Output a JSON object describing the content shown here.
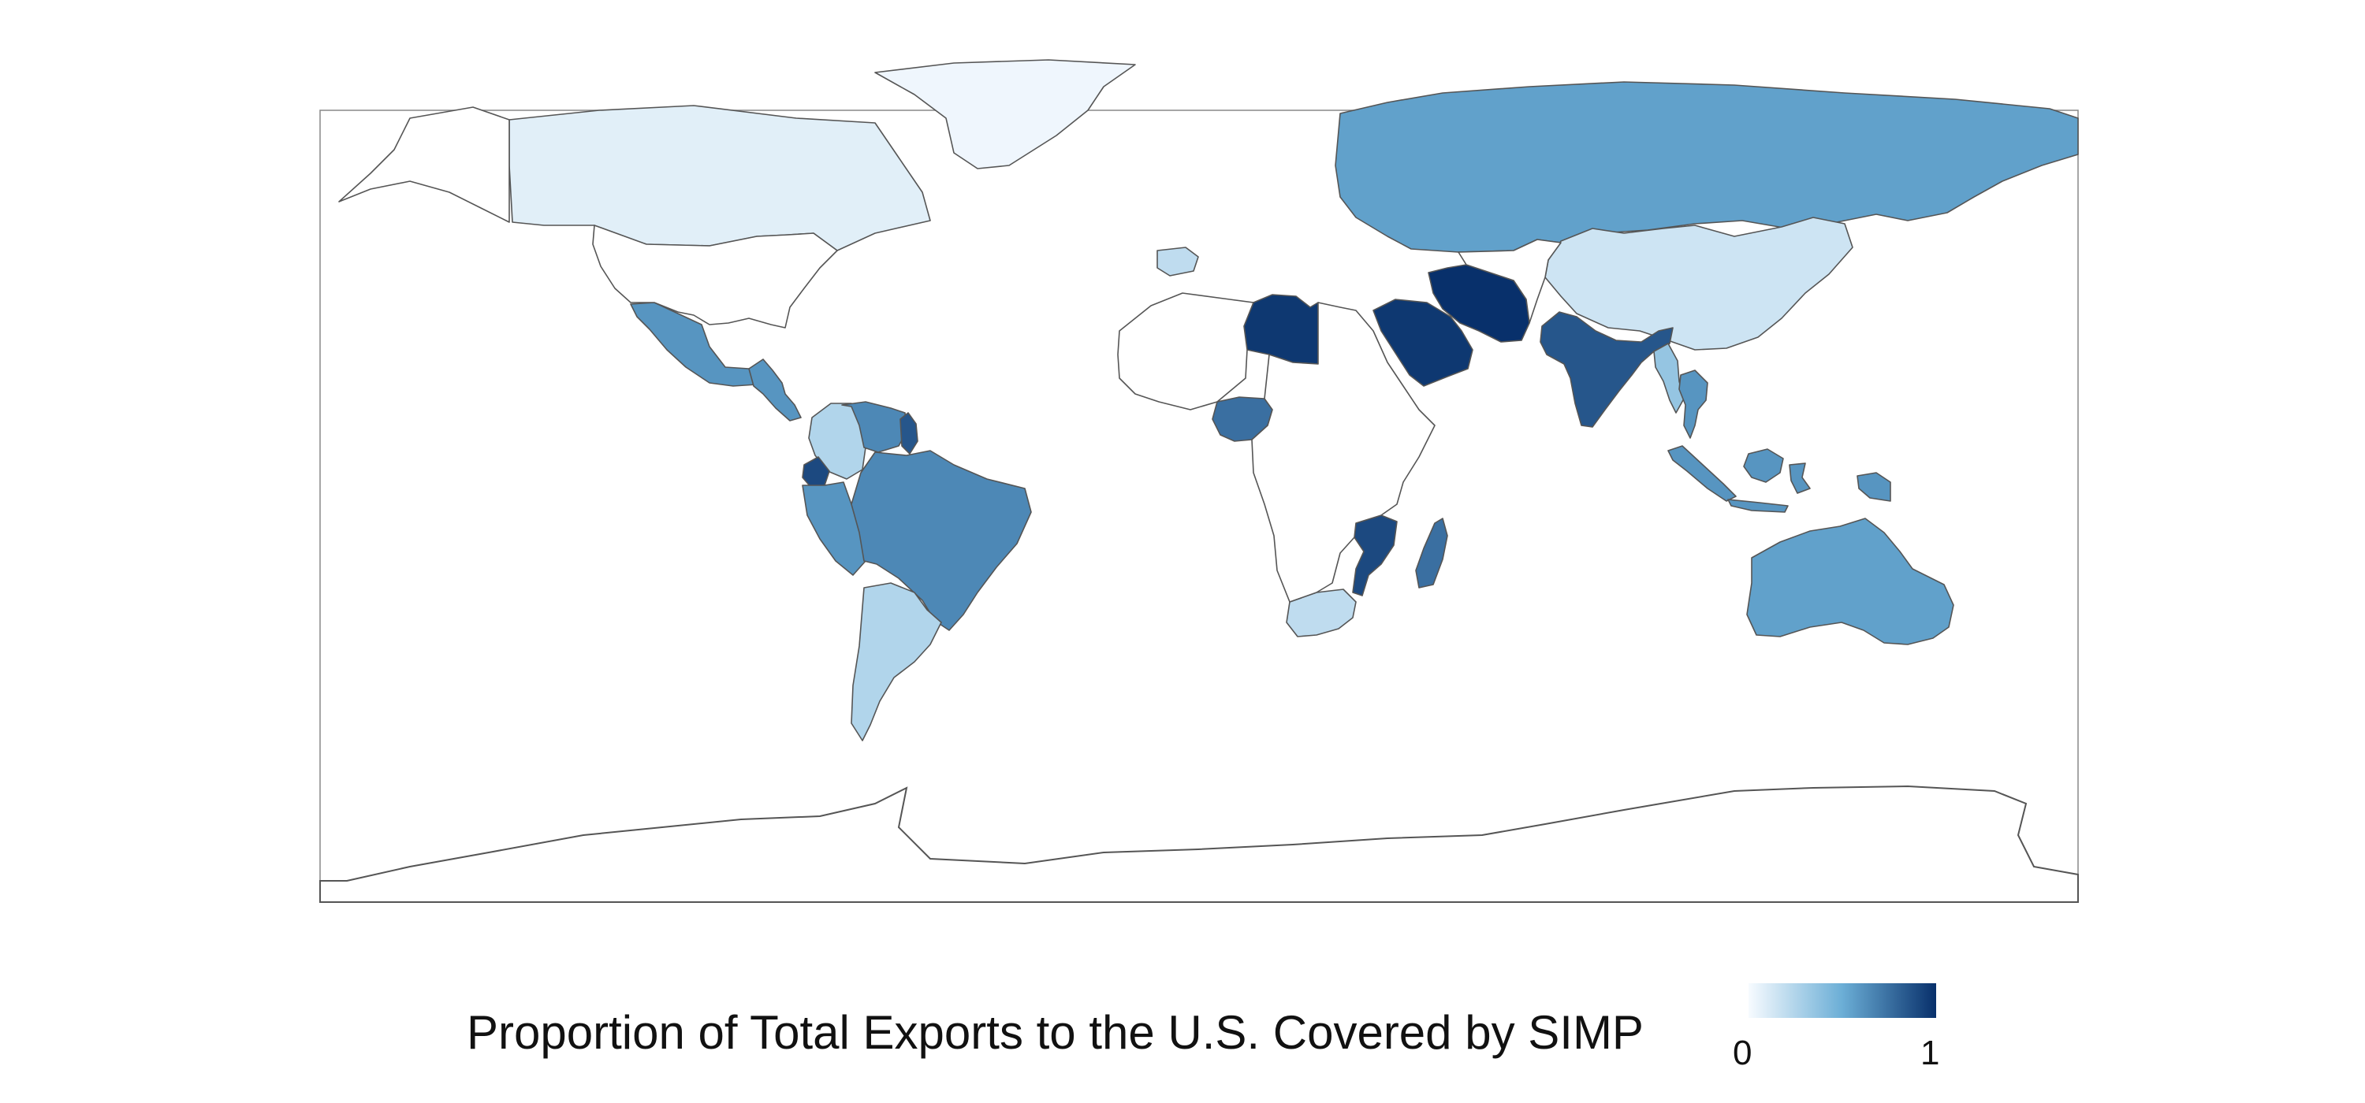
{
  "legend": {
    "title": "Proportion of Total Exports to the U.S. Covered by SIMP",
    "min_label": "0",
    "max_label": "1",
    "color_low": "#f7fbff",
    "color_mid": "#6baed6",
    "color_high": "#08306b"
  },
  "map_data": {
    "type": "choropleth",
    "projection": "equirectangular",
    "missing_fill": "#ffffff",
    "countries": [
      {
        "name": "Canada",
        "value": 0.08
      },
      {
        "name": "Greenland",
        "value": 0.03
      },
      {
        "name": "Mexico",
        "value": 0.6
      },
      {
        "name": "Central America",
        "value": 0.6
      },
      {
        "name": "Colombia",
        "value": 0.25
      },
      {
        "name": "Venezuela",
        "value": 0.65
      },
      {
        "name": "Guyana",
        "value": 0.85
      },
      {
        "name": "Ecuador",
        "value": 0.9
      },
      {
        "name": "Peru",
        "value": 0.6
      },
      {
        "name": "Brazil",
        "value": 0.65
      },
      {
        "name": "Argentina",
        "value": 0.25
      },
      {
        "name": "Russia",
        "value": 0.55
      },
      {
        "name": "China",
        "value": 0.15
      },
      {
        "name": "Libya",
        "value": 0.97
      },
      {
        "name": "Saudi Arabia",
        "value": 0.97
      },
      {
        "name": "Iran",
        "value": 1.0
      },
      {
        "name": "India",
        "value": 0.85
      },
      {
        "name": "Myanmar",
        "value": 0.35
      },
      {
        "name": "Thailand",
        "value": 0.6
      },
      {
        "name": "Indonesia",
        "value": 0.6
      },
      {
        "name": "Nigeria",
        "value": 0.75
      },
      {
        "name": "Mozambique",
        "value": 0.9
      },
      {
        "name": "Madagascar",
        "value": 0.75
      },
      {
        "name": "South Africa",
        "value": 0.2
      },
      {
        "name": "Australia",
        "value": 0.55
      },
      {
        "name": "Spain",
        "value": 0.2
      }
    ]
  }
}
